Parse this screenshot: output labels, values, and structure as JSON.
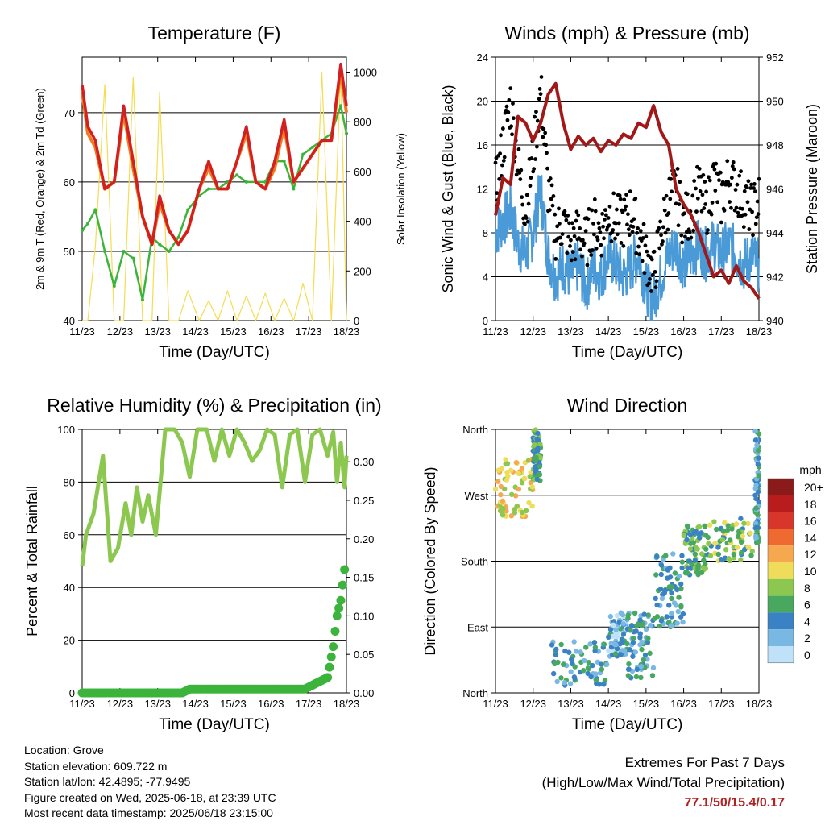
{
  "x_ticks": [
    "11/23",
    "12/23",
    "13/23",
    "14/23",
    "15/23",
    "16/23",
    "17/23",
    "18/23"
  ],
  "colors": {
    "t2m": "#d22020",
    "t9m": "#f07a20",
    "td": "#3cb43c",
    "solar": "#f5dc50",
    "wind": "#4a9ad8",
    "gust": "#000000",
    "pressure": "#a01818",
    "rh": "#8cc850",
    "precip": "#3cb43c"
  },
  "temperature": {
    "title": "Temperature (F)",
    "xlabel": "Time (Day/UTC)",
    "ylabel": "2m & 9m T (Red, Orange) & 2m Td (Green)",
    "y2label": "Solar Insolation (Yellow)",
    "ylim": [
      40,
      78
    ],
    "y_ticks": [
      "40",
      "50",
      "60",
      "70"
    ],
    "y2lim": [
      0,
      1060
    ],
    "y2_ticks": [
      "0",
      "200",
      "400",
      "600",
      "800",
      "1000"
    ],
    "chart_data": {
      "type": "line",
      "x": [
        11.0,
        11.15,
        11.35,
        11.6,
        11.85,
        12.1,
        12.35,
        12.6,
        12.85,
        13.05,
        13.3,
        13.55,
        13.8,
        14.1,
        14.35,
        14.6,
        14.85,
        15.1,
        15.35,
        15.6,
        15.85,
        16.1,
        16.35,
        16.6,
        16.85,
        17.1,
        17.35,
        17.6,
        17.85,
        18.0
      ],
      "series": [
        {
          "id": "t2m",
          "values": [
            74,
            68,
            66,
            59,
            60,
            71,
            63,
            55,
            51,
            58,
            53,
            51,
            53,
            59,
            63,
            59,
            59,
            63,
            68,
            60,
            59,
            63,
            69,
            60,
            62,
            64,
            66,
            66,
            77,
            71
          ]
        },
        {
          "id": "t9m",
          "values": [
            73,
            67,
            65,
            59,
            60,
            70,
            62,
            55,
            51,
            57,
            53,
            51,
            53,
            59,
            62,
            59,
            59,
            63,
            67,
            60,
            59,
            62,
            68,
            60,
            62,
            64,
            66,
            66,
            76,
            70
          ]
        },
        {
          "id": "td",
          "values": [
            53,
            54,
            56,
            50,
            45,
            50,
            49,
            43,
            52,
            51,
            50,
            52,
            56,
            58,
            59,
            59,
            60,
            61,
            60,
            60,
            60,
            63,
            63,
            59,
            64,
            65,
            66,
            67,
            71,
            67
          ]
        },
        {
          "id": "solar",
          "values": [
            0,
            0,
            300,
            950,
            0,
            0,
            980,
            0,
            0,
            920,
            0,
            0,
            120,
            0,
            80,
            0,
            120,
            0,
            100,
            0,
            110,
            0,
            90,
            0,
            150,
            0,
            1000,
            0,
            1010,
            0
          ]
        }
      ]
    }
  },
  "winds": {
    "title": "Winds (mph) & Pressure (mb)",
    "xlabel": "Time (Day/UTC)",
    "ylabel": "Sonic Wind & Gust (Blue, Black)",
    "y2label": "Station Pressure (Maroon)",
    "ylim": [
      0,
      24
    ],
    "y_ticks": [
      "0",
      "4",
      "8",
      "12",
      "16",
      "20",
      "24"
    ],
    "y2lim": [
      940,
      952
    ],
    "y2_ticks": [
      "940",
      "942",
      "944",
      "946",
      "948",
      "950",
      "952"
    ],
    "chart_data": {
      "type": "line",
      "x": [
        11.0,
        11.2,
        11.4,
        11.6,
        11.8,
        12.0,
        12.2,
        12.4,
        12.6,
        12.8,
        13.0,
        13.2,
        13.4,
        13.6,
        13.8,
        14.0,
        14.2,
        14.4,
        14.6,
        14.8,
        15.0,
        15.2,
        15.4,
        15.6,
        15.8,
        16.0,
        16.2,
        16.4,
        16.6,
        16.8,
        17.0,
        17.2,
        17.4,
        17.6,
        17.8,
        18.0
      ],
      "series": [
        {
          "id": "wind",
          "values": [
            8,
            9,
            10,
            7,
            6,
            8,
            12,
            6,
            4,
            5,
            4,
            5,
            3,
            5,
            4,
            6,
            5,
            4,
            5,
            6,
            3,
            2,
            4,
            6,
            7,
            5,
            6,
            7,
            6,
            7,
            6,
            7,
            6,
            5,
            6,
            5
          ]
        },
        {
          "id": "gust",
          "values": [
            12,
            16,
            20,
            14,
            10,
            15,
            21,
            12,
            8,
            9,
            7,
            8,
            7,
            9,
            8,
            10,
            9,
            9,
            10,
            8,
            6,
            4,
            8,
            11,
            12,
            9,
            10,
            12,
            10,
            13,
            11,
            13,
            12,
            11,
            10,
            11
          ]
        },
        {
          "id": "pressure",
          "values": [
            944.8,
            946.5,
            946.2,
            949.3,
            949.0,
            948.2,
            949.0,
            950.3,
            950.8,
            949.0,
            947.8,
            948.4,
            948.0,
            948.3,
            947.7,
            948.2,
            948.0,
            948.5,
            948.3,
            949.0,
            948.8,
            949.8,
            948.6,
            948.0,
            946.0,
            945.3,
            944.8,
            944.0,
            943.0,
            942.0,
            942.3,
            941.7,
            942.5,
            941.8,
            941.5,
            941.0
          ]
        }
      ]
    }
  },
  "humidity": {
    "title": "Relative Humidity (%) & Precipitation (in)",
    "xlabel": "Time (Day/UTC)",
    "ylabel": "Percent & Total Rainfall",
    "ylim": [
      0,
      100
    ],
    "y_ticks": [
      "0",
      "20",
      "40",
      "60",
      "80",
      "100"
    ],
    "y2lim": [
      0,
      0.342
    ],
    "y2_ticks": [
      "0.00",
      "0.05",
      "0.10",
      "0.15",
      "0.20",
      "0.25",
      "0.30"
    ],
    "chart_data": {
      "type": "line",
      "x": [
        11.0,
        11.1,
        11.3,
        11.55,
        11.75,
        11.95,
        12.15,
        12.3,
        12.45,
        12.6,
        12.75,
        12.95,
        13.2,
        13.45,
        13.65,
        13.85,
        14.05,
        14.3,
        14.5,
        14.7,
        14.9,
        15.1,
        15.3,
        15.5,
        15.7,
        15.9,
        16.1,
        16.3,
        16.5,
        16.7,
        16.9,
        17.1,
        17.3,
        17.5,
        17.65,
        17.75,
        17.85,
        17.95,
        18.0
      ],
      "series": [
        {
          "id": "rh",
          "values": [
            48,
            60,
            68,
            90,
            50,
            55,
            72,
            60,
            78,
            65,
            75,
            60,
            100,
            100,
            95,
            82,
            100,
            100,
            88,
            100,
            90,
            100,
            95,
            88,
            92,
            100,
            98,
            78,
            98,
            100,
            80,
            98,
            100,
            90,
            99,
            80,
            95,
            78,
            90
          ]
        },
        {
          "id": "precip",
          "values": [
            0,
            0,
            0,
            0,
            0,
            0,
            0,
            0,
            0,
            0,
            0,
            0,
            0,
            0,
            0,
            0.005,
            0.005,
            0.005,
            0.005,
            0.005,
            0.005,
            0.005,
            0.005,
            0.005,
            0.005,
            0.005,
            0.005,
            0.005,
            0.005,
            0.005,
            0.005,
            0.01,
            0.015,
            0.02,
            0.06,
            0.1,
            0.12,
            0.16,
            0.17
          ]
        }
      ]
    }
  },
  "direction": {
    "title": "Wind Direction",
    "xlabel": "Time (Day/UTC)",
    "ylabel": "Direction (Colored By Speed)",
    "ylim": [
      0,
      360
    ],
    "y_ticks": [
      "North",
      "East",
      "South",
      "West",
      "North"
    ],
    "legend_title": "mph",
    "legend_labels": [
      "20+",
      "18",
      "16",
      "14",
      "12",
      "10",
      "8",
      "6",
      "4",
      "2",
      "0"
    ],
    "legend_colors": [
      "#8b1a1a",
      "#b81c1c",
      "#d8362a",
      "#ef6a30",
      "#f6a850",
      "#eedc5a",
      "#8cc850",
      "#48a860",
      "#3a82c4",
      "#7ab8e4",
      "#c0e2f8"
    ],
    "chart_data": {
      "type": "scatter",
      "clusters": [
        {
          "x": [
            11.0,
            12.0
          ],
          "y": [
            240,
            320
          ],
          "speed": 10
        },
        {
          "x": [
            12.0,
            12.2
          ],
          "y": [
            290,
            360
          ],
          "speed": 6
        },
        {
          "x": [
            12.5,
            14.0
          ],
          "y": [
            10,
            70
          ],
          "speed": 4
        },
        {
          "x": [
            14.0,
            14.5
          ],
          "y": [
            50,
            110
          ],
          "speed": 3
        },
        {
          "x": [
            14.5,
            15.2
          ],
          "y": [
            20,
            110
          ],
          "speed": 4
        },
        {
          "x": [
            15.2,
            16.0
          ],
          "y": [
            90,
            190
          ],
          "speed": 4
        },
        {
          "x": [
            16.0,
            16.6
          ],
          "y": [
            160,
            230
          ],
          "speed": 6
        },
        {
          "x": [
            16.6,
            17.9
          ],
          "y": [
            180,
            240
          ],
          "speed": 7
        },
        {
          "x": [
            17.9,
            18.0
          ],
          "y": [
            200,
            360
          ],
          "speed": 4
        }
      ]
    }
  },
  "info": {
    "location": "Location: Grove",
    "elevation": "Station elevation: 609.722 m",
    "latlon": "Station lat/lon: 42.4895; -77.9495",
    "created": "Figure created on Wed, 2025-06-18, at 23:39 UTC",
    "recent": "Most recent data timestamp: 2025/06/18 23:15:00"
  },
  "extremes": {
    "line1": "Extremes For Past 7 Days",
    "line2": "(High/Low/Max Wind/Total Precipitation)",
    "values": "77.1/50/15.4/0.17"
  }
}
